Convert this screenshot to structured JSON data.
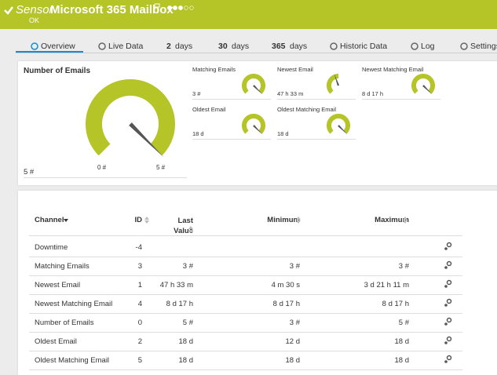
{
  "header": {
    "kind": "Sensor",
    "title": "Microsoft 365 Mailbox",
    "status": "OK"
  },
  "tabs": [
    {
      "label": "Overview"
    },
    {
      "label": "Live Data"
    },
    {
      "number": "2",
      "label": "days"
    },
    {
      "number": "30",
      "label": "days"
    },
    {
      "number": "365",
      "label": "days"
    },
    {
      "label": "Historic Data"
    },
    {
      "label": "Log"
    },
    {
      "label": "Settings"
    }
  ],
  "main_gauge": {
    "title": "Number of Emails",
    "value": "5 #",
    "min": "0 #",
    "max": "5 #"
  },
  "gauges": [
    {
      "title": "Matching Emails",
      "value": "3 #"
    },
    {
      "title": "Newest Email",
      "value": "47 h 33 m"
    },
    {
      "title": "Newest Matching Email",
      "value": "8 d 17 h"
    },
    {
      "title": "Oldest Email",
      "value": "18 d"
    },
    {
      "title": "Oldest Matching Email",
      "value": "18 d"
    }
  ],
  "table": {
    "columns": [
      "Channel",
      "ID",
      "Last Value",
      "Minimum",
      "Maximum"
    ],
    "rows": [
      [
        "Downtime",
        -4
      ],
      [
        "Matching Emails",
        3,
        "3 #",
        "3 #",
        "3 #"
      ],
      [
        "Newest Email",
        1,
        "47 h 33 m",
        "4 m 30 s",
        "3 d 21 h 11 m"
      ],
      [
        "Newest Matching Email",
        4,
        "8 d 17 h",
        "8 d 17 h",
        "8 d 17 h"
      ],
      [
        "Number of Emails",
        0,
        "5 #",
        "3 #",
        "5 #"
      ],
      [
        "Oldest Email",
        2,
        "18 d",
        "12 d",
        "18 d"
      ],
      [
        "Oldest Matching Email",
        5,
        "18 d",
        "18 d",
        "18 d"
      ]
    ]
  }
}
